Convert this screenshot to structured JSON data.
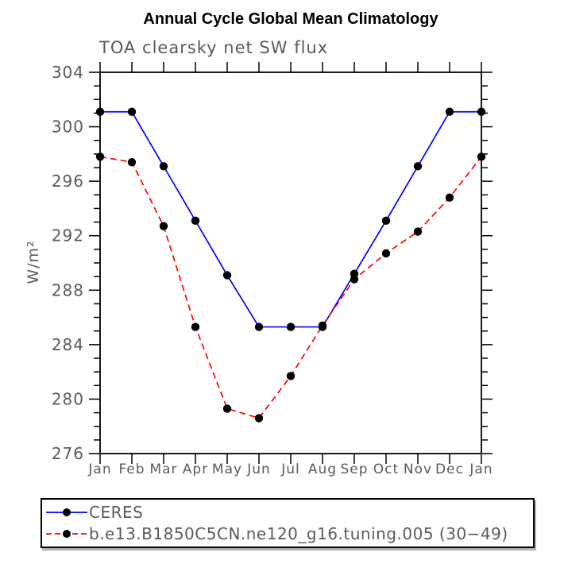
{
  "chart_data": {
    "type": "line",
    "title": "Annual Cycle Global Mean Climatology",
    "subtitle": "TOA clearsky net SW flux",
    "ylabel": "W/m²",
    "xlabel": "",
    "ylim": [
      276,
      304
    ],
    "yticks": [
      276,
      280,
      284,
      288,
      292,
      296,
      300,
      304
    ],
    "ytick_minor_step": 1,
    "x_categories": [
      "Jan",
      "Feb",
      "Mar",
      "Apr",
      "May",
      "Jun",
      "Jul",
      "Aug",
      "Sep",
      "Oct",
      "Nov",
      "Dec",
      "Jan"
    ],
    "grid": false,
    "legend_position": "bottom-left-box",
    "frame_color": "#000000",
    "label_color": "#5a5a5a",
    "marker_color": "#000000",
    "series": [
      {
        "name": "CERES",
        "color": "#0000ff",
        "dash": "solid",
        "marker": "circle",
        "values": [
          301.1,
          301.1,
          297.1,
          293.1,
          289.1,
          285.3,
          285.3,
          285.3,
          289.2,
          293.1,
          297.1,
          301.1,
          301.1
        ]
      },
      {
        "name": "b.e13.B1850C5CN.ne120_g16.tuning.005 (30−49)",
        "color": "#ff0000",
        "dash": "dashed",
        "marker": "circle",
        "values": [
          297.8,
          297.4,
          292.7,
          285.3,
          279.3,
          278.6,
          281.7,
          285.4,
          288.8,
          290.7,
          292.3,
          294.8,
          297.8
        ]
      }
    ]
  }
}
